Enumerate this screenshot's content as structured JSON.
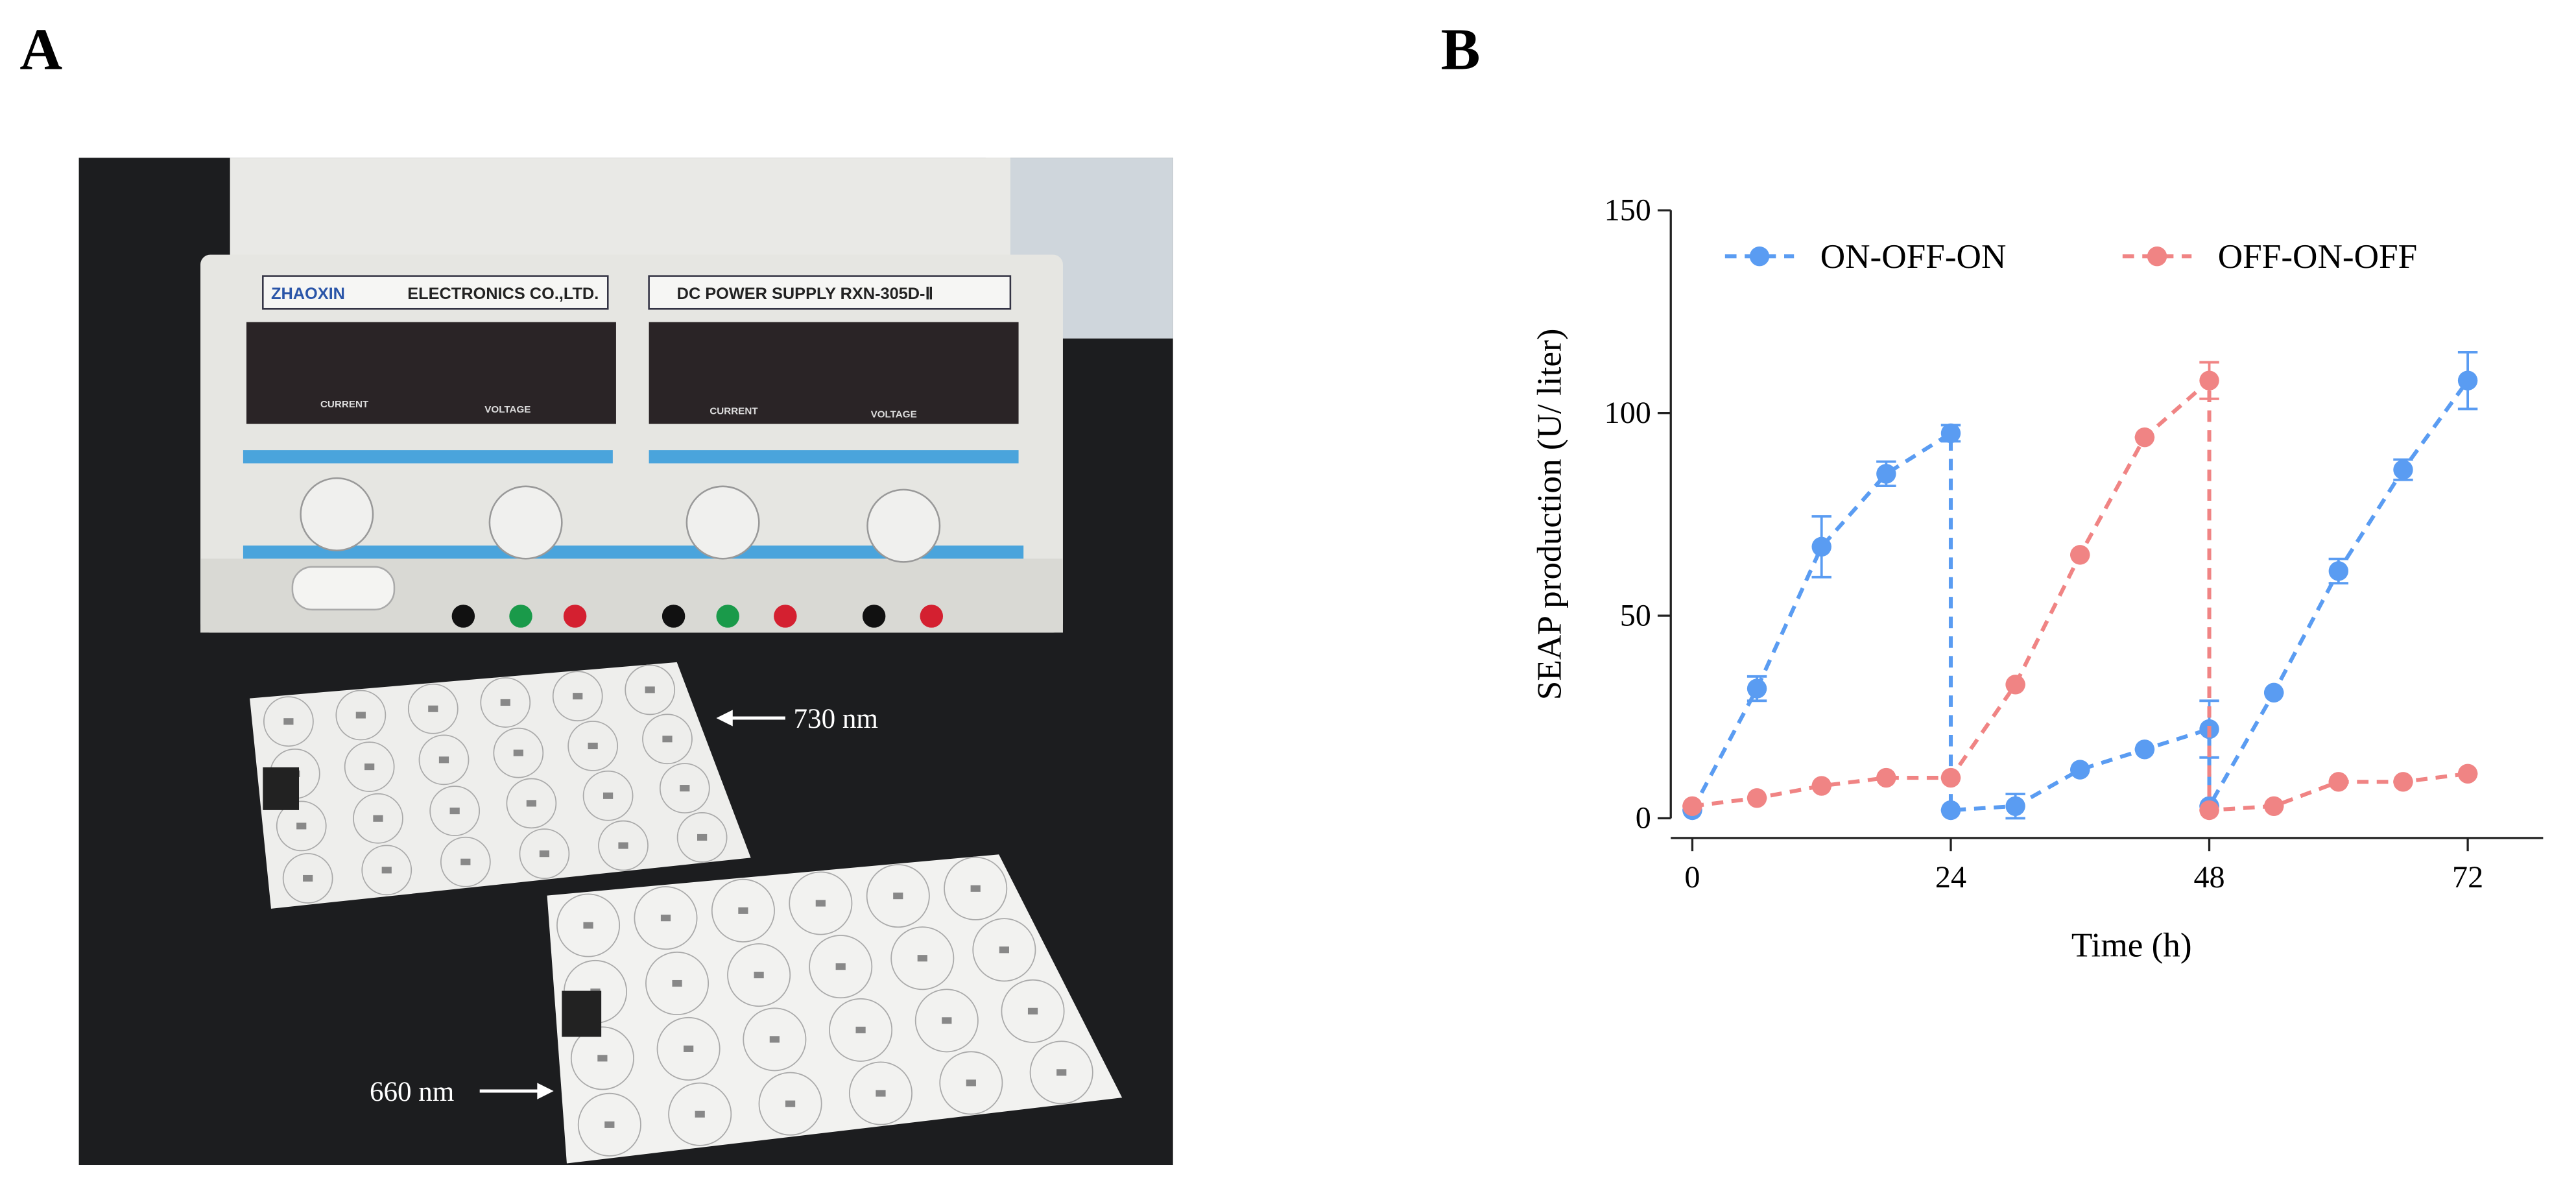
{
  "panel_labels": [
    "A",
    "B"
  ],
  "photo": {
    "annotations": [
      "730 nm",
      "660 nm"
    ],
    "device_texts": [
      "ZHAOXIN",
      "ELECTRONICS CO.,LTD.",
      "DC POWER SUPPLY  RXN-305D-Ⅱ",
      "CURRENT",
      "VOLTAGE",
      "CURRENT",
      "VOLTAGE"
    ]
  },
  "chart_data": {
    "type": "line",
    "y_label": "SEAP production (U/ liter)",
    "x_label": "Time (h)",
    "xlim": [
      -2,
      79
    ],
    "xticks": [
      0,
      24,
      48,
      72
    ],
    "ylim": [
      0,
      150
    ],
    "yticks": [
      0,
      50,
      100,
      150
    ],
    "legend": "top",
    "series": [
      {
        "name": "ON-OFF-ON",
        "color": "#5a9cf2",
        "x": [
          0,
          6,
          12,
          18,
          24,
          24,
          30,
          36,
          42,
          48,
          48,
          54,
          60,
          66,
          72
        ],
        "values": [
          2,
          32,
          67,
          85,
          95,
          2,
          3,
          12,
          17,
          22,
          3,
          31,
          61,
          86,
          108
        ],
        "errors": [
          0,
          3,
          7.5,
          3,
          2,
          0,
          3,
          0,
          0,
          7,
          0,
          0,
          3,
          2.5,
          7
        ]
      },
      {
        "name": "OFF-ON-OFF",
        "color": "#f08484",
        "x": [
          0,
          6,
          12,
          18,
          24,
          30,
          36,
          42,
          48,
          48,
          54,
          60,
          66,
          72
        ],
        "values": [
          3,
          5,
          8,
          10,
          10,
          33,
          65,
          94,
          108,
          2,
          3,
          9,
          9,
          11
        ],
        "errors": [
          0,
          0,
          0,
          0,
          0,
          0,
          0,
          0,
          4.5,
          0,
          0,
          0,
          0,
          0
        ]
      }
    ]
  }
}
